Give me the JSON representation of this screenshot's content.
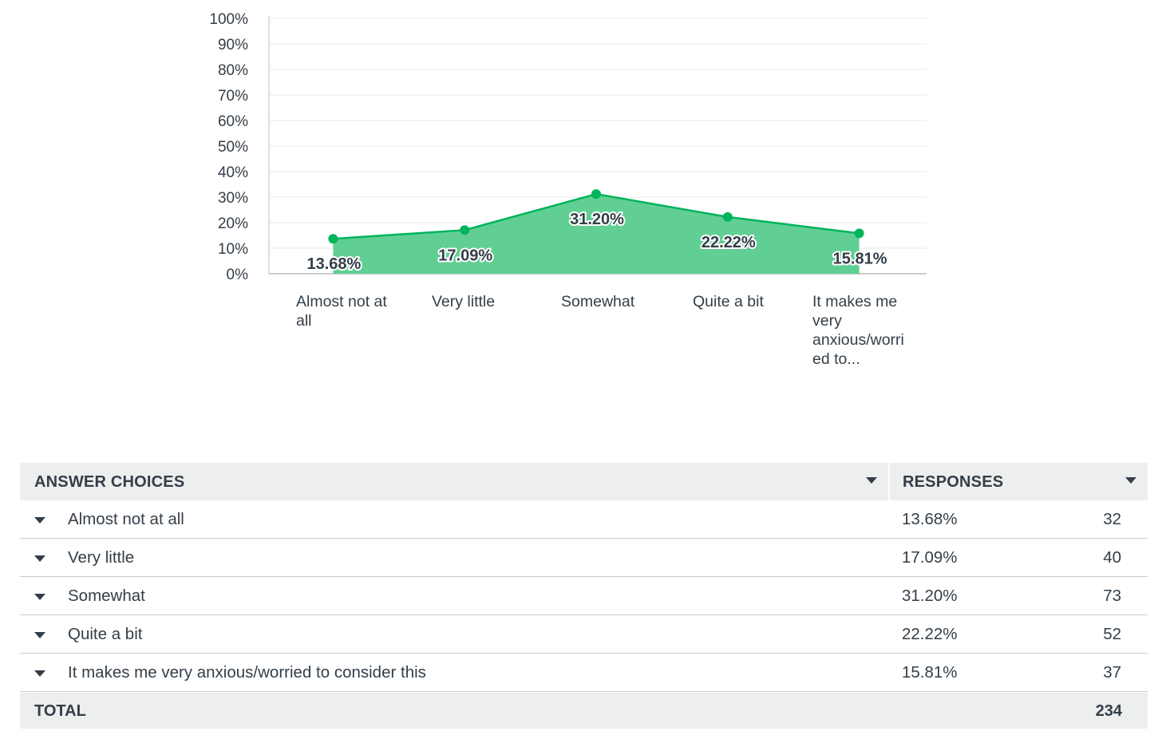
{
  "chart_data": {
    "type": "area",
    "categories": [
      "Almost not at all",
      "Very little",
      "Somewhat",
      "Quite a bit",
      "It makes me very anxious/worried to..."
    ],
    "values": [
      13.68,
      17.09,
      31.2,
      22.22,
      15.81
    ],
    "data_labels": [
      "13.68%",
      "17.09%",
      "31.20%",
      "22.22%",
      "15.81%"
    ],
    "ylim": [
      0,
      100
    ],
    "yticks": [
      "0%",
      "10%",
      "20%",
      "30%",
      "40%",
      "50%",
      "60%",
      "70%",
      "80%",
      "90%",
      "100%"
    ],
    "grid": true,
    "legend": "none",
    "colors": {
      "line": "#00b45c",
      "fill": "#61cf93",
      "point": "#00b45c"
    },
    "title": "",
    "xlabel": "",
    "ylabel": ""
  },
  "table": {
    "header": {
      "answer_choices": "ANSWER CHOICES",
      "responses": "RESPONSES"
    },
    "rows": [
      {
        "label": "Almost not at all",
        "pct": "13.68%",
        "count": "32"
      },
      {
        "label": "Very little",
        "pct": "17.09%",
        "count": "40"
      },
      {
        "label": "Somewhat",
        "pct": "31.20%",
        "count": "73"
      },
      {
        "label": "Quite a bit",
        "pct": "22.22%",
        "count": "52"
      },
      {
        "label": "It makes me very anxious/worried to consider this",
        "pct": "15.81%",
        "count": "37"
      }
    ],
    "total": {
      "label": "TOTAL",
      "value": "234"
    }
  },
  "icons": {
    "sort": "caret-down-icon",
    "expand": "caret-down-icon"
  }
}
